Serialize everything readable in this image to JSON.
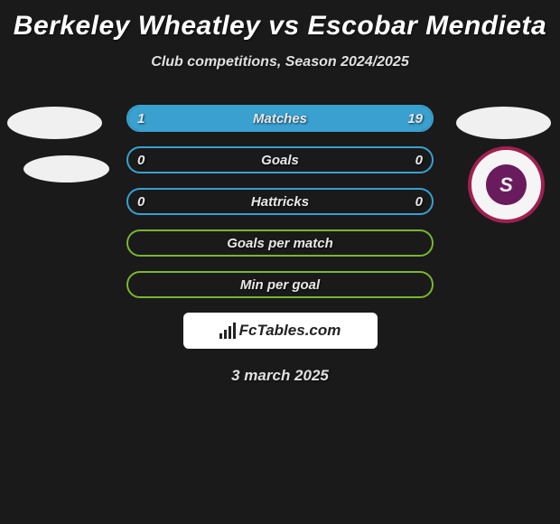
{
  "title": "Berkeley Wheatley vs Escobar Mendieta",
  "subtitle": "Club competitions, Season 2024/2025",
  "date": "3 march 2025",
  "branding": "FcTables.com",
  "colors": {
    "background": "#1a1a1a",
    "text_light": "#e8e8e8",
    "blue_border": "#3aa0d0",
    "blue_fill": "#3aa0d0",
    "green_border": "#7ab530",
    "white": "#ffffff"
  },
  "bars": [
    {
      "label": "Matches",
      "left_value": "1",
      "right_value": "19",
      "border_color": "#3aa0d0",
      "left_fill": "#3aa0d0",
      "right_fill": "#3aa0d0",
      "left_width_pct": 8,
      "right_width_pct": 92
    },
    {
      "label": "Goals",
      "left_value": "0",
      "right_value": "0",
      "border_color": "#3aa0d0",
      "left_fill": "transparent",
      "right_fill": "transparent",
      "left_width_pct": 0,
      "right_width_pct": 0
    },
    {
      "label": "Hattricks",
      "left_value": "0",
      "right_value": "0",
      "border_color": "#3aa0d0",
      "left_fill": "transparent",
      "right_fill": "transparent",
      "left_width_pct": 0,
      "right_width_pct": 0
    },
    {
      "label": "Goals per match",
      "left_value": "",
      "right_value": "",
      "border_color": "#7ab530",
      "left_fill": "transparent",
      "right_fill": "transparent",
      "left_width_pct": 0,
      "right_width_pct": 0
    },
    {
      "label": "Min per goal",
      "left_value": "",
      "right_value": "",
      "border_color": "#7ab530",
      "left_fill": "transparent",
      "right_fill": "transparent",
      "left_width_pct": 0,
      "right_width_pct": 0
    }
  ]
}
